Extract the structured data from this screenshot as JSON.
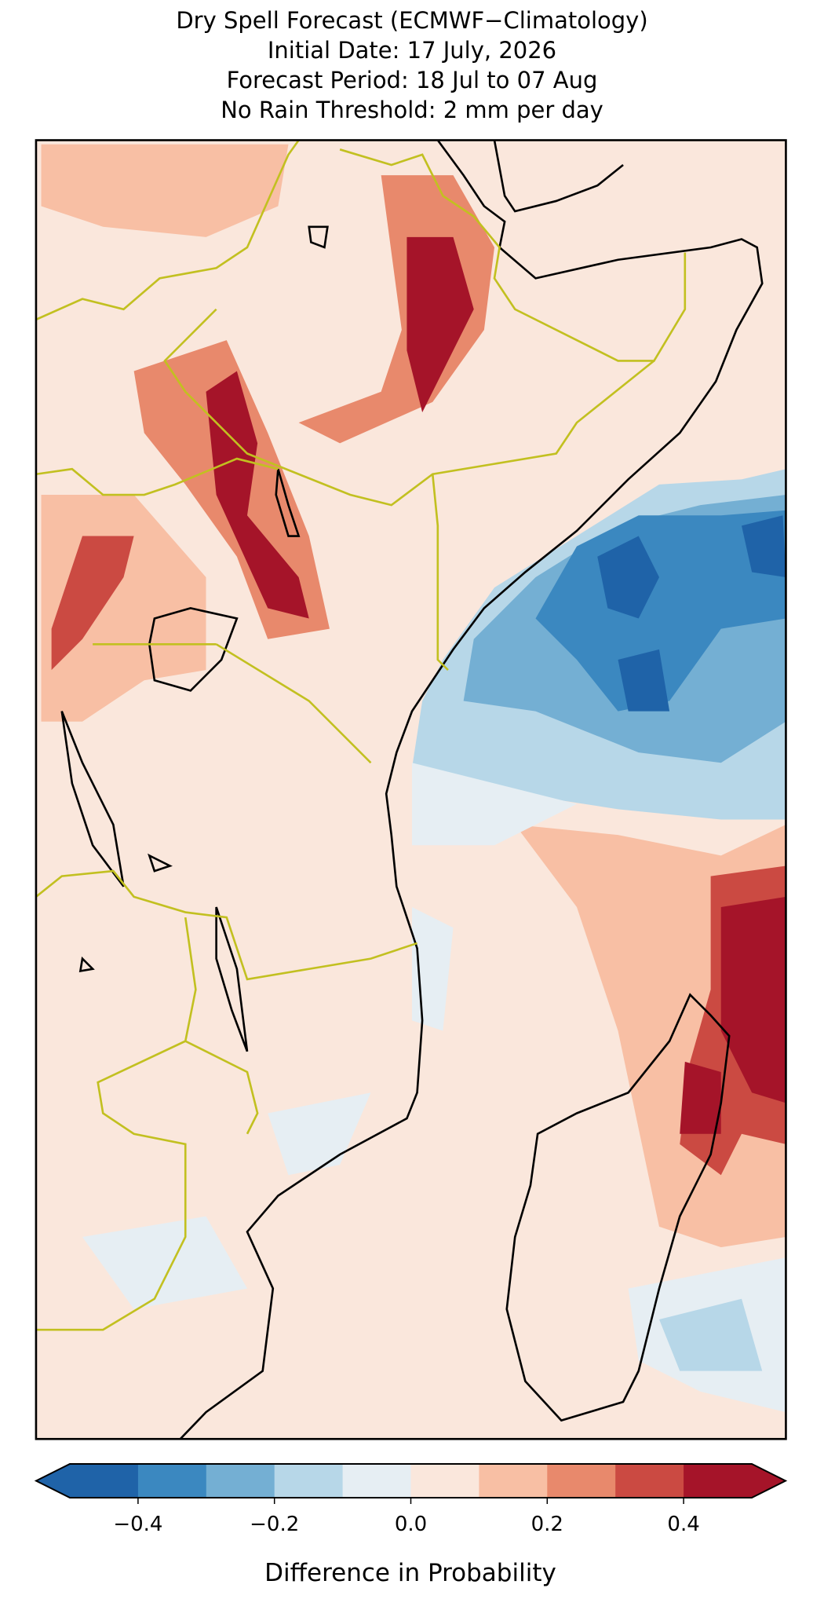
{
  "title": [
    "Dry Spell Forecast (ECMWF−Climatology)",
    "Initial Date: 17 July, 2026",
    "Forecast Period: 18 Jul to 07 Aug",
    "No Rain Threshold: 2 mm per day"
  ],
  "colorbar": {
    "label": "Difference in Probability",
    "boundaries": [
      -0.5,
      -0.4,
      -0.3,
      -0.2,
      -0.1,
      0,
      0.1,
      0.2,
      0.3,
      0.4,
      0.5
    ],
    "colors": [
      "#1f63a8",
      "#3b88c0",
      "#74afd3",
      "#b7d7e8",
      "#e6eef3",
      "#fae7dc",
      "#f8bfa4",
      "#e8896c",
      "#cb4a42",
      "#a51429"
    ],
    "extend": "both",
    "ticks": [
      {
        "value": -0.4,
        "label": "−0.4"
      },
      {
        "value": -0.2,
        "label": "−0.2"
      },
      {
        "value": 0,
        "label": "0.0"
      },
      0.2,
      0.4
    ]
  }
}
